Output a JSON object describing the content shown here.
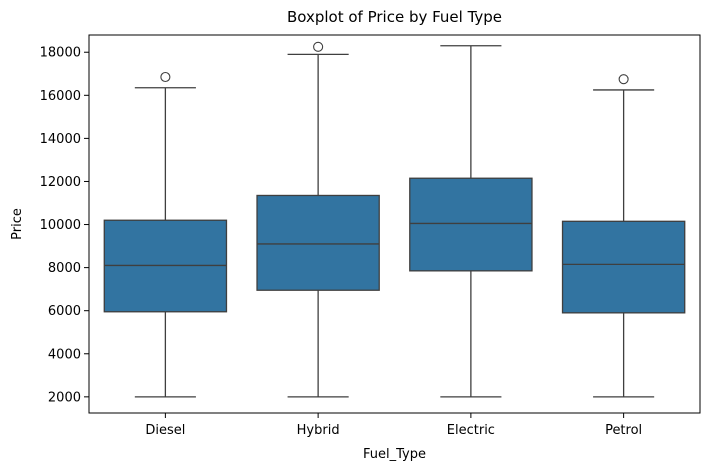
{
  "chart_data": {
    "type": "boxplot",
    "title": "Boxplot of Price by Fuel Type",
    "xlabel": "Fuel_Type",
    "ylabel": "Price",
    "categories": [
      "Diesel",
      "Hybrid",
      "Electric",
      "Petrol"
    ],
    "ylim": [
      1250,
      18800
    ],
    "yticks": [
      2000,
      4000,
      6000,
      8000,
      10000,
      12000,
      14000,
      16000,
      18000
    ],
    "grid": false,
    "legend": "none",
    "box_color": "#3274a1",
    "line_color": "#3f3f3f",
    "boxes": [
      {
        "category": "Diesel",
        "whisker_low": 2000,
        "q1": 5950,
        "median": 8100,
        "q3": 10200,
        "whisker_high": 16350,
        "outliers": [
          16850
        ]
      },
      {
        "category": "Hybrid",
        "whisker_low": 2000,
        "q1": 6950,
        "median": 9100,
        "q3": 11350,
        "whisker_high": 17900,
        "outliers": [
          18250
        ]
      },
      {
        "category": "Electric",
        "whisker_low": 2000,
        "q1": 7850,
        "median": 10050,
        "q3": 12150,
        "whisker_high": 18300,
        "outliers": []
      },
      {
        "category": "Petrol",
        "whisker_low": 2000,
        "q1": 5900,
        "median": 8150,
        "q3": 10150,
        "whisker_high": 16250,
        "outliers": [
          16750
        ]
      }
    ]
  }
}
